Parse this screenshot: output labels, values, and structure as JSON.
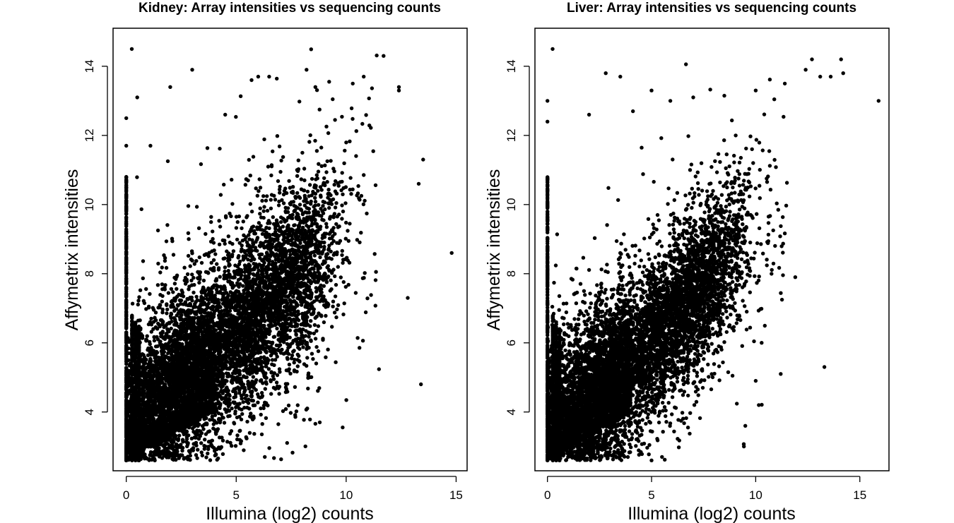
{
  "chart_data": [
    {
      "type": "scatter",
      "title": "Kidney: Array intensities vs sequencing counts",
      "xlabel": "Illumina (log2) counts",
      "ylabel": "Affymetrix intensities",
      "xlim": [
        -0.6,
        15.5
      ],
      "ylim": [
        2.3,
        15.1
      ],
      "xticks": [
        "0",
        "5",
        "10",
        "15"
      ],
      "yticks": [
        "4",
        "6",
        "8",
        "10",
        "12",
        "14"
      ],
      "grid": false,
      "legend": "none",
      "point_color": "#000000",
      "trend": {
        "slope": 0.62,
        "intercept": 3.25,
        "noise_sd": 1.35
      },
      "zero_count_columns": [
        0,
        0.26,
        0.42,
        0.58
      ],
      "x": [
        0.25,
        0.5,
        2.0,
        1.1,
        3.0,
        0.0,
        0.0,
        4.5,
        5.7,
        6.0,
        6.5,
        8.2,
        8.6,
        10.3,
        10.8,
        11.7,
        12.4,
        12.4,
        13.3,
        13.5,
        14.8,
        13.4,
        12.8,
        8.8,
        1.3,
        1.9,
        3.7,
        6.3,
        0.0,
        0.0
      ],
      "y": [
        14.5,
        13.1,
        13.4,
        11.7,
        13.9,
        12.5,
        11.7,
        12.6,
        13.6,
        13.7,
        13.7,
        13.9,
        13.4,
        13.5,
        13.7,
        14.3,
        13.4,
        13.3,
        10.6,
        11.3,
        8.6,
        4.8,
        7.3,
        3.7,
        2.6,
        2.7,
        2.8,
        2.7,
        10.1,
        10.7
      ]
    },
    {
      "type": "scatter",
      "title": "Liver: Array intensities vs sequencing counts",
      "xlabel": "Illumina (log2) counts",
      "ylabel": "Affymetrix intensities",
      "xlim": [
        -0.6,
        16.4
      ],
      "ylim": [
        2.3,
        15.1
      ],
      "xticks": [
        "0",
        "5",
        "10",
        "15"
      ],
      "yticks": [
        "4",
        "6",
        "8",
        "10",
        "12",
        "14"
      ],
      "grid": false,
      "legend": "none",
      "point_color": "#000000",
      "trend": {
        "slope": 0.66,
        "intercept": 2.75,
        "noise_sd": 1.2
      },
      "zero_count_columns": [
        0,
        0.26,
        0.42,
        0.58
      ],
      "x": [
        0.25,
        0.0,
        0.0,
        2.0,
        2.8,
        3.5,
        5.0,
        5.9,
        7.0,
        10.0,
        11.4,
        12.4,
        12.7,
        13.1,
        13.6,
        14.1,
        14.2,
        15.9,
        13.3,
        11.9,
        11.2,
        10.0,
        9.5,
        5.0,
        5.5,
        0.0
      ],
      "y": [
        14.5,
        13.0,
        12.4,
        12.6,
        13.8,
        13.7,
        13.3,
        13.0,
        13.1,
        13.3,
        13.5,
        13.9,
        14.2,
        13.7,
        13.7,
        14.2,
        13.8,
        13.0,
        5.3,
        7.9,
        5.1,
        4.9,
        3.6,
        2.6,
        2.7,
        9.8
      ]
    }
  ]
}
